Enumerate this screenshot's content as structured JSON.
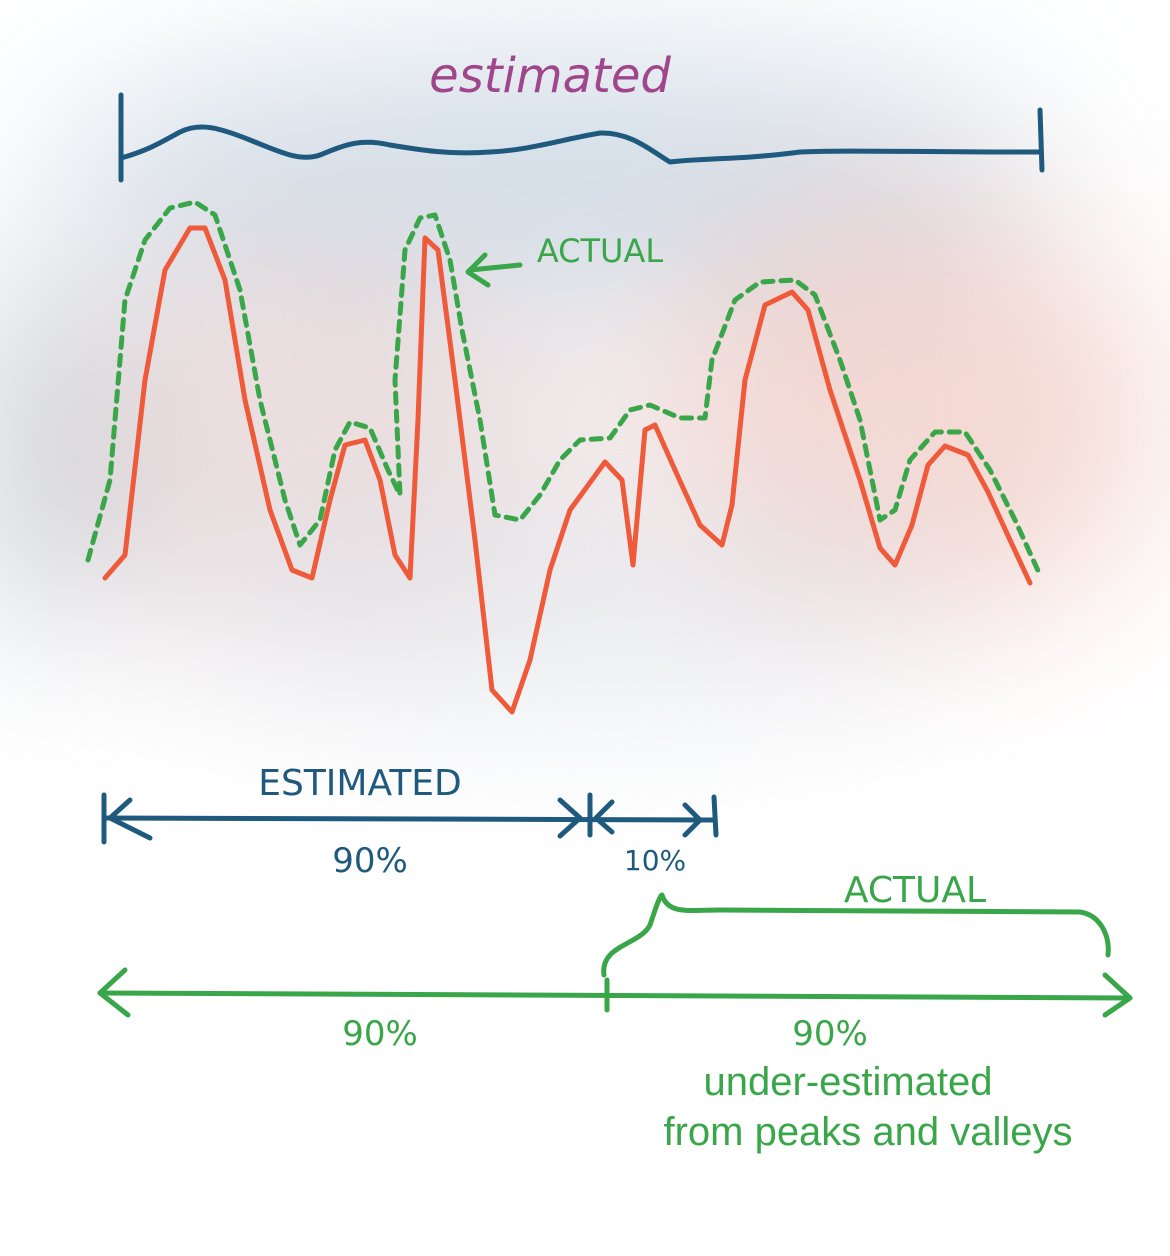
{
  "top": {
    "label": "estimated"
  },
  "curves": {
    "actual_label": "ACTUAL"
  },
  "estimated_bar": {
    "label": "ESTIMATED",
    "left": "90%",
    "right": "10%"
  },
  "actual_bar": {
    "label": "ACTUAL",
    "left": "90%",
    "right": "90%",
    "note": [
      "under-estimated",
      "from peaks and valleys"
    ]
  }
}
